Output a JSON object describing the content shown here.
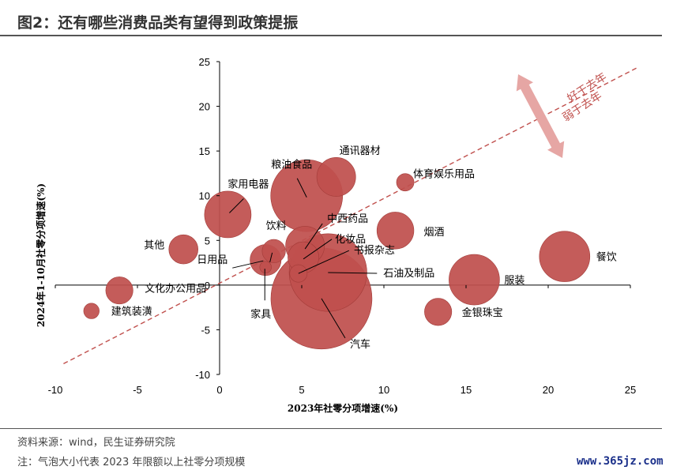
{
  "title": "图2：还有哪些消费品类有望得到政策提振",
  "source": "资料来源：wind，民生证券研究院",
  "note": "注：气泡大小代表 2023 年限额以上社零分项规模",
  "watermark": "www.365jz.com",
  "colors": {
    "bubble": "#c0504d",
    "bubble_stroke": "#a23b38",
    "trend": "#c0504d",
    "arrow": "#e6a6a4",
    "annot": "#c0504d"
  },
  "chart_data": {
    "type": "scatter",
    "xlabel": "2023年社零分项增速(%)",
    "ylabel": "2024年1-10月社零分项增速(%)",
    "xlim": [
      -10,
      25
    ],
    "ylim": [
      -10,
      25
    ],
    "xticks": [
      -10,
      -5,
      0,
      5,
      10,
      15,
      20,
      25
    ],
    "yticks": [
      -10,
      -5,
      0,
      5,
      10,
      15,
      20,
      25
    ],
    "trend_line": {
      "x": [
        -9.5,
        25.5
      ],
      "y": [
        -8.8,
        24.4
      ]
    },
    "annotations": {
      "above": "好于去年",
      "below": "弱于去年"
    },
    "points": [
      {
        "name": "建筑装潢",
        "x": -7.8,
        "y": -2.9,
        "size": 0.8
      },
      {
        "name": "文化办公用品",
        "x": -6.1,
        "y": -0.6,
        "size": 1.4
      },
      {
        "name": "其他",
        "x": -2.2,
        "y": 4.0,
        "size": 1.5
      },
      {
        "name": "家用电器",
        "x": 0.5,
        "y": 7.9,
        "size": 2.4
      },
      {
        "name": "日用品",
        "x": 2.8,
        "y": 2.8,
        "size": 1.6
      },
      {
        "name": "家具",
        "x": 2.8,
        "y": 2.0,
        "size": 0.6
      },
      {
        "name": "饮料",
        "x": 3.3,
        "y": 3.8,
        "size": 1.2
      },
      {
        "name": "粮油食品",
        "x": 5.3,
        "y": 10.0,
        "size": 3.7
      },
      {
        "name": "中西药品",
        "x": 5.2,
        "y": 4.4,
        "size": 2.0
      },
      {
        "name": "化妆品",
        "x": 5.1,
        "y": 3.1,
        "size": 1.6
      },
      {
        "name": "书报杂志",
        "x": 4.8,
        "y": 1.3,
        "size": 0.9
      },
      {
        "name": "通讯器材",
        "x": 7.1,
        "y": 12.1,
        "size": 2.0
      },
      {
        "name": "体育娱乐用品",
        "x": 11.3,
        "y": 11.5,
        "size": 0.9
      },
      {
        "name": "烟酒",
        "x": 10.7,
        "y": 6.1,
        "size": 1.9
      },
      {
        "name": "石油及制品",
        "x": 6.6,
        "y": 1.4,
        "size": 4.0
      },
      {
        "name": "汽车",
        "x": 6.2,
        "y": -1.5,
        "size": 5.2
      },
      {
        "name": "金银珠宝",
        "x": 13.3,
        "y": -3.0,
        "size": 1.4
      },
      {
        "name": "服装",
        "x": 15.5,
        "y": 0.6,
        "size": 2.6
      },
      {
        "name": "餐饮",
        "x": 21.0,
        "y": 3.2,
        "size": 2.6
      }
    ]
  }
}
